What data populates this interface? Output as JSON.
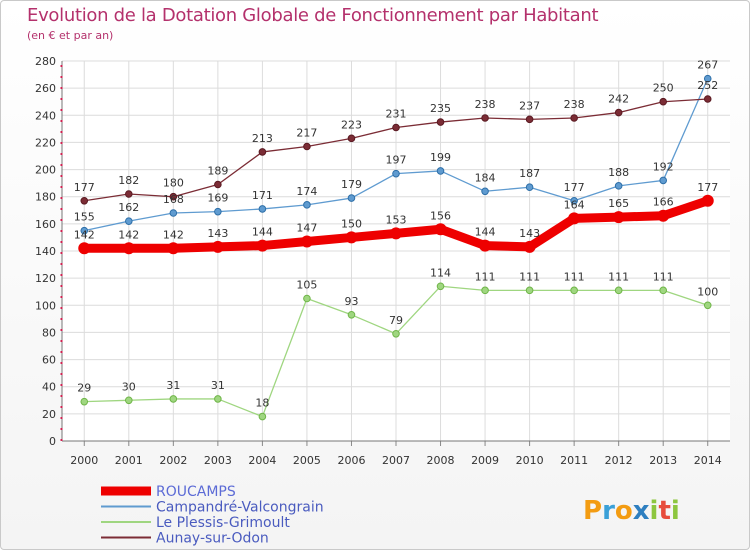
{
  "title": "Evolution de la Dotation Globale de Fonctionnement par Habitant",
  "subtitle": "(en € et par an)",
  "brand": {
    "letters": [
      "P",
      "r",
      "o",
      "x",
      "i",
      "t",
      "i"
    ],
    "colors": [
      "#f39c12",
      "#3aa0d8",
      "#f39c12",
      "#2e7fc0",
      "#8dc63f",
      "#e74c3c",
      "#8dc63f"
    ]
  },
  "chart_data": {
    "type": "line",
    "x": [
      "2000",
      "2001",
      "2002",
      "2003",
      "2004",
      "2005",
      "2006",
      "2007",
      "2008",
      "2009",
      "2010",
      "2011",
      "2012",
      "2013",
      "2014"
    ],
    "yticks": [
      0,
      20,
      40,
      60,
      80,
      100,
      120,
      140,
      160,
      180,
      200,
      220,
      240,
      260,
      280
    ],
    "ylim": [
      0,
      280
    ],
    "grid": true,
    "legend_position": "bottom-left",
    "series": [
      {
        "name": "ROUCAMPS",
        "color": "#ee0000",
        "width": 9,
        "values": [
          142,
          142,
          142,
          143,
          144,
          147,
          150,
          153,
          156,
          144,
          143,
          164,
          165,
          166,
          177
        ],
        "labels": [
          "142",
          "142",
          "142",
          "143",
          "144",
          "147",
          "150",
          "153",
          "156",
          "144",
          "143",
          "164",
          "165",
          "166",
          "177"
        ]
      },
      {
        "name": "Campandré-Valcongrain",
        "color": "#5f9bd0",
        "width": 1.3,
        "values": [
          155,
          162,
          168,
          169,
          171,
          174,
          179,
          197,
          199,
          184,
          187,
          177,
          188,
          192,
          267
        ],
        "labels": [
          "155",
          "162",
          "168",
          "169",
          "171",
          "174",
          "179",
          "197",
          "199",
          "184",
          "187",
          "177",
          "188",
          "192",
          "267"
        ]
      },
      {
        "name": "Le Plessis-Grimoult",
        "color": "#9fd680",
        "width": 1.3,
        "values": [
          29,
          30,
          31,
          31,
          18,
          105,
          93,
          79,
          114,
          111,
          111,
          111,
          111,
          111,
          100
        ],
        "labels": [
          "29",
          "30",
          "31",
          "31",
          "18",
          "105",
          "93",
          "79",
          "114",
          "111",
          "111",
          "111",
          "111",
          "111",
          "100"
        ]
      },
      {
        "name": "Aunay-sur-Odon",
        "color": "#7b2c35",
        "width": 1.3,
        "values": [
          177,
          182,
          180,
          189,
          213,
          217,
          223,
          231,
          235,
          238,
          237,
          238,
          242,
          250,
          252
        ],
        "labels": [
          "177",
          "182",
          "180",
          "189",
          "213",
          "217",
          "223",
          "231",
          "235",
          "238",
          "237",
          "238",
          "242",
          "250",
          "252"
        ]
      }
    ]
  }
}
